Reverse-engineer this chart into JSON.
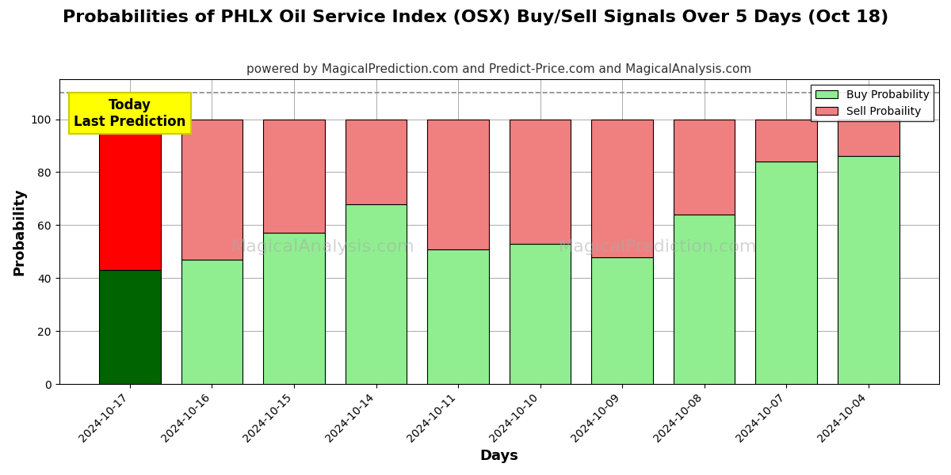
{
  "title": "Probabilities of PHLX Oil Service Index (OSX) Buy/Sell Signals Over 5 Days (Oct 18)",
  "subtitle": "powered by MagicalPrediction.com and Predict-Price.com and MagicalAnalysis.com",
  "xlabel": "Days",
  "ylabel": "Probability",
  "dates": [
    "2024-10-17",
    "2024-10-16",
    "2024-10-15",
    "2024-10-14",
    "2024-10-11",
    "2024-10-10",
    "2024-10-09",
    "2024-10-08",
    "2024-10-07",
    "2024-10-04"
  ],
  "buy_probs": [
    43,
    47,
    57,
    68,
    51,
    53,
    48,
    64,
    84,
    86
  ],
  "sell_probs": [
    57,
    53,
    43,
    32,
    49,
    47,
    52,
    36,
    16,
    14
  ],
  "buy_color_first": "#006400",
  "sell_color_first": "#FF0000",
  "buy_color_rest": "#90EE90",
  "sell_color_rest": "#F08080",
  "bar_edge_color": "black",
  "bar_edge_width": 0.8,
  "ylim": [
    0,
    115
  ],
  "yticks": [
    0,
    20,
    40,
    60,
    80,
    100
  ],
  "dashed_line_y": 110,
  "annotation_text": "Today\nLast Prediction",
  "annotation_bg": "#FFFF00",
  "watermark_texts": [
    "MagicalAnalysis.com",
    "MagicalPrediction.com"
  ],
  "legend_buy_label": "Buy Probability",
  "legend_sell_label": "Sell Probaility",
  "title_fontsize": 16,
  "subtitle_fontsize": 11,
  "axis_label_fontsize": 13,
  "tick_fontsize": 10,
  "bg_color": "#FFFFFF",
  "grid_color": "#AAAAAA",
  "bar_width": 0.75,
  "figsize": [
    12,
    6
  ]
}
